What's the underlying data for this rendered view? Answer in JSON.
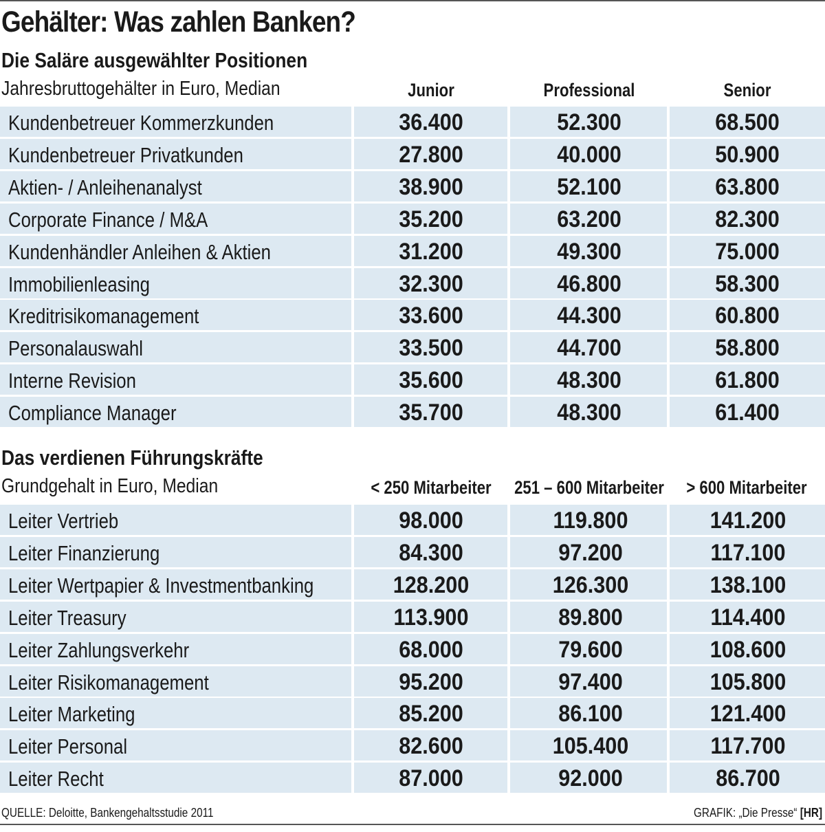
{
  "title": "Gehälter: Was zahlen Banken?",
  "footer": {
    "source": "QUELLE: Deloitte, Bankengehaltsstudie 2011",
    "credit": "GRAFIK: „Die Presse“",
    "credit_tag": "[HR]"
  },
  "colors": {
    "row_background": "#dde9f2",
    "text": "#1a1a1a",
    "rule": "#555555"
  },
  "chart_data": [
    {
      "type": "table",
      "title": "Die Saläre ausgewählter Positionen",
      "subtitle": "Jahresbruttogehälter in Euro, Median",
      "columns": [
        "Junior",
        "Professional",
        "Senior"
      ],
      "rows": [
        {
          "label": "Kundenbetreuer Kommerzkunden",
          "values": [
            "36.400",
            "52.300",
            "68.500"
          ]
        },
        {
          "label": "Kundenbetreuer Privatkunden",
          "values": [
            "27.800",
            "40.000",
            "50.900"
          ]
        },
        {
          "label": "Aktien- / Anleihenanalyst",
          "values": [
            "38.900",
            "52.100",
            "63.800"
          ]
        },
        {
          "label": "Corporate Finance / M&A",
          "values": [
            "35.200",
            "63.200",
            "82.300"
          ]
        },
        {
          "label": "Kundenhändler Anleihen & Aktien",
          "values": [
            "31.200",
            "49.300",
            "75.000"
          ]
        },
        {
          "label": "Immobilienleasing",
          "values": [
            "32.300",
            "46.800",
            "58.300"
          ]
        },
        {
          "label": "Kreditrisikomanagement",
          "values": [
            "33.600",
            "44.300",
            "60.800"
          ]
        },
        {
          "label": "Personalauswahl",
          "values": [
            "33.500",
            "44.700",
            "58.800"
          ]
        },
        {
          "label": "Interne Revision",
          "values": [
            "35.600",
            "48.300",
            "61.800"
          ]
        },
        {
          "label": "Compliance Manager",
          "values": [
            "35.700",
            "48.300",
            "61.400"
          ]
        }
      ]
    },
    {
      "type": "table",
      "title": "Das verdienen Führungskräfte",
      "subtitle": "Grundgehalt in Euro, Median",
      "columns": [
        "< 250 Mitarbeiter",
        "251 – 600 Mitarbeiter",
        "> 600 Mitarbeiter"
      ],
      "rows": [
        {
          "label": "Leiter Vertrieb",
          "values": [
            "98.000",
            "119.800",
            "141.200"
          ]
        },
        {
          "label": "Leiter Finanzierung",
          "values": [
            "84.300",
            "97.200",
            "117.100"
          ]
        },
        {
          "label": "Leiter Wertpapier & Investmentbanking",
          "values": [
            "128.200",
            "126.300",
            "138.100"
          ]
        },
        {
          "label": "Leiter Treasury",
          "values": [
            "113.900",
            "89.800",
            "114.400"
          ]
        },
        {
          "label": "Leiter Zahlungsverkehr",
          "values": [
            "68.000",
            "79.600",
            "108.600"
          ]
        },
        {
          "label": "Leiter Risikomanagement",
          "values": [
            "95.200",
            "97.400",
            "105.800"
          ]
        },
        {
          "label": "Leiter Marketing",
          "values": [
            "85.200",
            "86.100",
            "121.400"
          ]
        },
        {
          "label": "Leiter Personal",
          "values": [
            "82.600",
            "105.400",
            "117.700"
          ]
        },
        {
          "label": "Leiter Recht",
          "values": [
            "87.000",
            "92.000",
            "86.700"
          ]
        }
      ]
    }
  ]
}
